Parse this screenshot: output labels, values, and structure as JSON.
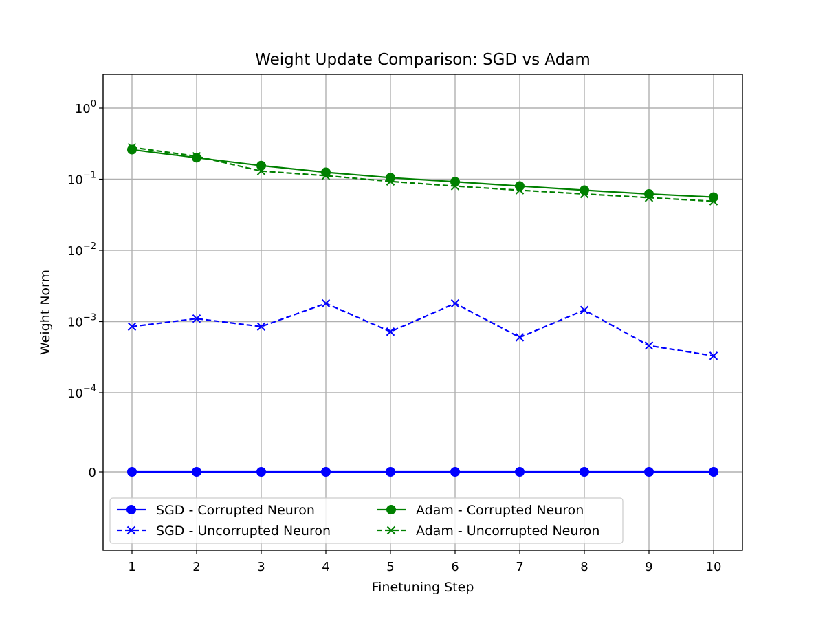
{
  "chart_data": {
    "type": "line",
    "title": "Weight Update Comparison: SGD vs Adam",
    "xlabel": "Finetuning Step",
    "ylabel": "Weight Norm",
    "yscale": "symlog",
    "linthresh": 0.0001,
    "grid": true,
    "legend_location": "lower-left",
    "x": [
      1,
      2,
      3,
      4,
      5,
      6,
      7,
      8,
      9,
      10
    ],
    "x_ticks": [
      "1",
      "2",
      "3",
      "4",
      "5",
      "6",
      "7",
      "8",
      "9",
      "10"
    ],
    "y_ticks": [
      {
        "value": 1,
        "base": "10",
        "exp": "0"
      },
      {
        "value": 0.1,
        "base": "10",
        "exp": "−1"
      },
      {
        "value": 0.01,
        "base": "10",
        "exp": "−2"
      },
      {
        "value": 0.001,
        "base": "10",
        "exp": "−3"
      },
      {
        "value": 0.0001,
        "base": "10",
        "exp": "−4"
      },
      {
        "value": 0,
        "base": "0",
        "exp": ""
      }
    ],
    "series": [
      {
        "name": "SGD - Corrupted Neuron",
        "color": "#0000ff",
        "linestyle": "solid",
        "marker": "circle",
        "values": [
          0,
          0,
          0,
          0,
          0,
          0,
          0,
          0,
          0,
          0
        ]
      },
      {
        "name": "SGD - Uncorrupted Neuron",
        "color": "#0000ff",
        "linestyle": "dashed",
        "marker": "x",
        "values": [
          0.00085,
          0.0011,
          0.00085,
          0.0018,
          0.00072,
          0.0018,
          0.0006,
          0.00145,
          0.00046,
          0.00033
        ]
      },
      {
        "name": "Adam - Corrupted Neuron",
        "color": "#008000",
        "linestyle": "solid",
        "marker": "circle",
        "values": [
          0.26,
          0.2,
          0.155,
          0.125,
          0.105,
          0.092,
          0.08,
          0.07,
          0.062,
          0.056
        ]
      },
      {
        "name": "Adam - Uncorrupted Neuron",
        "color": "#008000",
        "linestyle": "dashed",
        "marker": "x",
        "values": [
          0.28,
          0.21,
          0.13,
          0.112,
          0.093,
          0.08,
          0.07,
          0.062,
          0.055,
          0.049
        ]
      }
    ]
  }
}
